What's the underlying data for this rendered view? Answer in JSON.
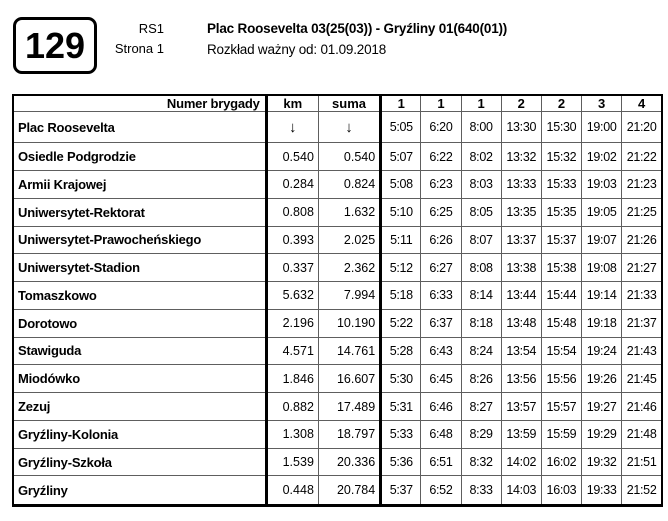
{
  "header": {
    "line_number": "129",
    "route_code": "RS1",
    "page_label": "Strona 1",
    "route_title": "Plac Roosevelta 03(25(03)) - Gryźliny 01(640(01))",
    "validity": "Rozkład ważny od: 01.09.2018"
  },
  "table": {
    "name_header": "Numer brygady",
    "km_header": "km",
    "suma_header": "suma",
    "brigades": [
      "1",
      "1",
      "1",
      "2",
      "2",
      "3",
      "4"
    ],
    "arrow": "↓",
    "rows": [
      {
        "stop": "Plac Roosevelta",
        "km": "↓",
        "suma": "↓",
        "times": [
          "5:05",
          "6:20",
          "8:00",
          "13:30",
          "15:30",
          "19:00",
          "21:20"
        ]
      },
      {
        "stop": "Osiedle Podgrodzie",
        "km": "0.540",
        "suma": "0.540",
        "times": [
          "5:07",
          "6:22",
          "8:02",
          "13:32",
          "15:32",
          "19:02",
          "21:22"
        ]
      },
      {
        "stop": "Armii Krajowej",
        "km": "0.284",
        "suma": "0.824",
        "times": [
          "5:08",
          "6:23",
          "8:03",
          "13:33",
          "15:33",
          "19:03",
          "21:23"
        ]
      },
      {
        "stop": "Uniwersytet-Rektorat",
        "km": "0.808",
        "suma": "1.632",
        "times": [
          "5:10",
          "6:25",
          "8:05",
          "13:35",
          "15:35",
          "19:05",
          "21:25"
        ]
      },
      {
        "stop": "Uniwersytet-Prawocheńskiego",
        "km": "0.393",
        "suma": "2.025",
        "times": [
          "5:11",
          "6:26",
          "8:07",
          "13:37",
          "15:37",
          "19:07",
          "21:26"
        ]
      },
      {
        "stop": "Uniwersytet-Stadion",
        "km": "0.337",
        "suma": "2.362",
        "times": [
          "5:12",
          "6:27",
          "8:08",
          "13:38",
          "15:38",
          "19:08",
          "21:27"
        ]
      },
      {
        "stop": "Tomaszkowo",
        "km": "5.632",
        "suma": "7.994",
        "times": [
          "5:18",
          "6:33",
          "8:14",
          "13:44",
          "15:44",
          "19:14",
          "21:33"
        ]
      },
      {
        "stop": "Dorotowo",
        "km": "2.196",
        "suma": "10.190",
        "times": [
          "5:22",
          "6:37",
          "8:18",
          "13:48",
          "15:48",
          "19:18",
          "21:37"
        ]
      },
      {
        "stop": "Stawiguda",
        "km": "4.571",
        "suma": "14.761",
        "times": [
          "5:28",
          "6:43",
          "8:24",
          "13:54",
          "15:54",
          "19:24",
          "21:43"
        ]
      },
      {
        "stop": "Miodówko",
        "km": "1.846",
        "suma": "16.607",
        "times": [
          "5:30",
          "6:45",
          "8:26",
          "13:56",
          "15:56",
          "19:26",
          "21:45"
        ]
      },
      {
        "stop": "Zezuj",
        "km": "0.882",
        "suma": "17.489",
        "times": [
          "5:31",
          "6:46",
          "8:27",
          "13:57",
          "15:57",
          "19:27",
          "21:46"
        ]
      },
      {
        "stop": "Gryźliny-Kolonia",
        "km": "1.308",
        "suma": "18.797",
        "times": [
          "5:33",
          "6:48",
          "8:29",
          "13:59",
          "15:59",
          "19:29",
          "21:48"
        ]
      },
      {
        "stop": "Gryźliny-Szkoła",
        "km": "1.539",
        "suma": "20.336",
        "times": [
          "5:36",
          "6:51",
          "8:32",
          "14:02",
          "16:02",
          "19:32",
          "21:51"
        ]
      },
      {
        "stop": "Gryźliny",
        "km": "0.448",
        "suma": "20.784",
        "times": [
          "5:37",
          "6:52",
          "8:33",
          "14:03",
          "16:03",
          "19:33",
          "21:52"
        ]
      }
    ]
  },
  "colors": {
    "background": "#ffffff",
    "text": "#000000",
    "border_thick": "#000000",
    "border_thin": "#5e5e5e"
  }
}
